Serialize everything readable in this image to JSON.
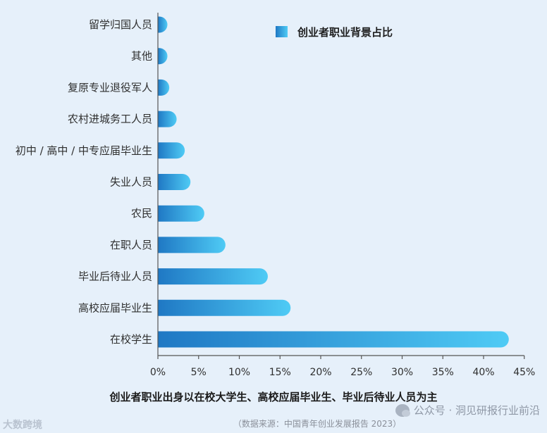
{
  "chart_data": {
    "type": "bar",
    "orientation": "horizontal",
    "categories": [
      "在校学生",
      "高校应届毕业生",
      "毕业后待业人员",
      "在职人员",
      "农民",
      "失业人员",
      "初中 / 高中 / 中专应届毕业生",
      "农村进城务工人员",
      "复原专业退役军人",
      "其他",
      "留学归国人员"
    ],
    "series": [
      {
        "name": "创业者职业背景占比",
        "values": [
          43.1,
          16.3,
          13.5,
          8.3,
          5.7,
          4.0,
          3.3,
          2.3,
          1.4,
          1.0,
          1.0
        ]
      }
    ],
    "xlim": [
      0,
      45
    ],
    "xticks": [
      "0%",
      "5%",
      "10%",
      "15%",
      "20%",
      "25%",
      "30%",
      "35%",
      "40%",
      "45%"
    ],
    "grid": false,
    "legend_position": "top-right",
    "colors": {
      "bar_start": "#1f78c4",
      "bar_end": "#4fcbf5",
      "axis": "#555555"
    }
  },
  "caption": "创业者职业出身以在校大学生、高校应届毕业生、毕业后待业人员为主",
  "source": "（数据来源：中国青年创业发展报告 2023）",
  "watermark": "公众号 · 洞见研报行业前沿",
  "watermark_icon": "wechat-icon",
  "logo": "大数跨境"
}
